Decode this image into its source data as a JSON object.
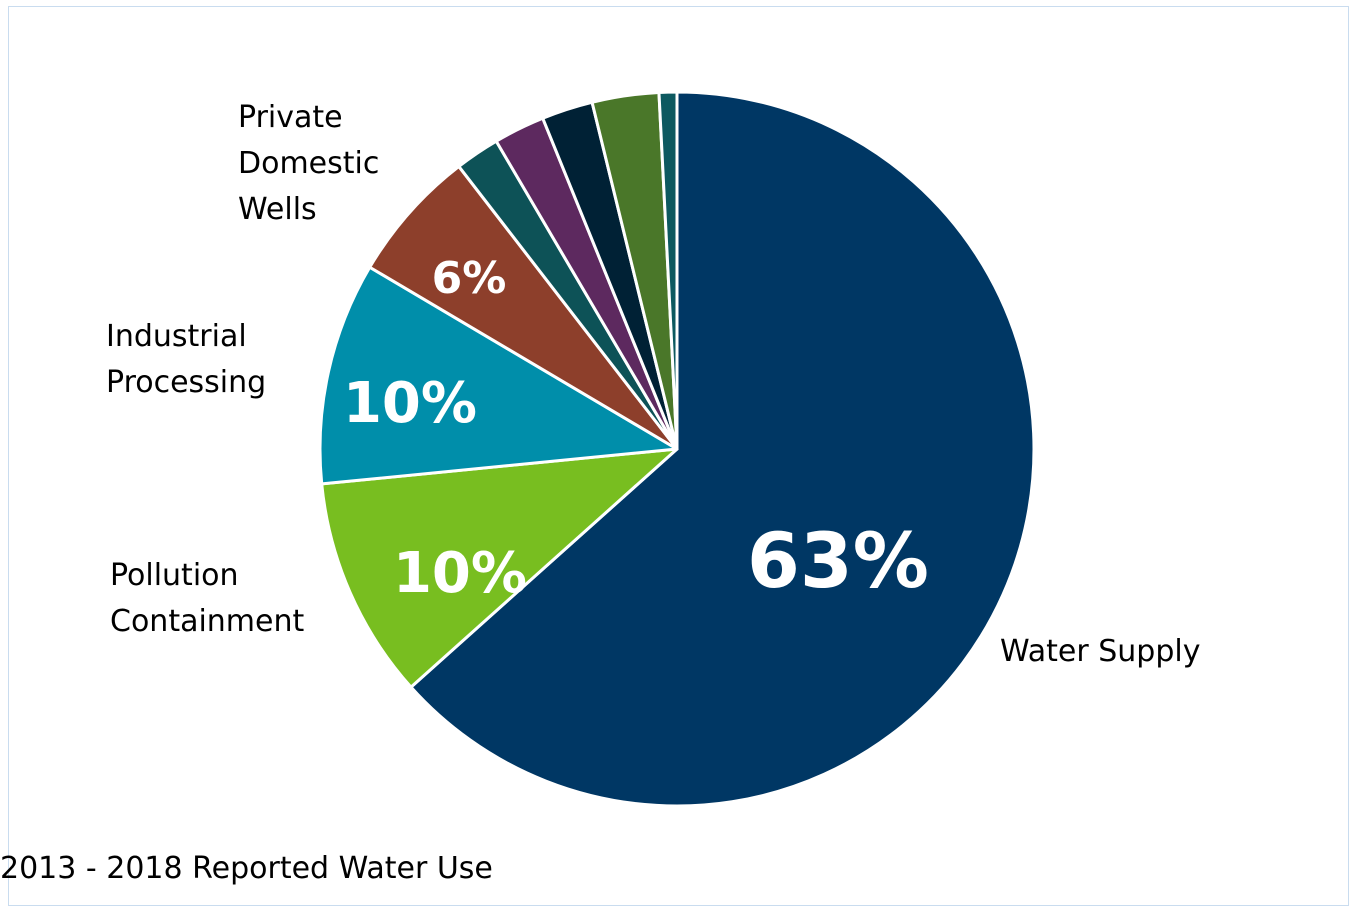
{
  "chart_data": {
    "type": "pie",
    "caption": "2013 - 2018 Reported Water Use",
    "start_angle_deg": 0,
    "direction": "clockwise",
    "slices": [
      {
        "label": "Water Supply",
        "label_lines": [
          "Water Supply"
        ],
        "value": 63,
        "value_label": "63%",
        "color": "#003764"
      },
      {
        "label": "Pollution Containment",
        "label_lines": [
          "Pollution",
          "Containment"
        ],
        "value": 10,
        "value_label": "10%",
        "color": "#78be20"
      },
      {
        "label": "Industrial Processing",
        "label_lines": [
          "Industrial",
          "Processing"
        ],
        "value": 10,
        "value_label": "10%",
        "color": "#008eaa"
      },
      {
        "label": "Private Domestic Wells",
        "label_lines": [
          "Private",
          "Domestic",
          "Wells"
        ],
        "value": 6,
        "value_label": "6%",
        "color": "#8d3f2b"
      },
      {
        "label": "",
        "label_lines": [],
        "value": 2,
        "value_label": "",
        "color": "#0d5257"
      },
      {
        "label": "",
        "label_lines": [],
        "value": 2.3,
        "value_label": "",
        "color": "#5d295f"
      },
      {
        "label": "",
        "label_lines": [],
        "value": 2.3,
        "value_label": "",
        "color": "#002135"
      },
      {
        "label": "",
        "label_lines": [],
        "value": 3,
        "value_label": "",
        "color": "#4a7729"
      },
      {
        "label": "",
        "label_lines": [],
        "value": 0.8,
        "value_label": "",
        "color": "#0d5960"
      }
    ]
  }
}
